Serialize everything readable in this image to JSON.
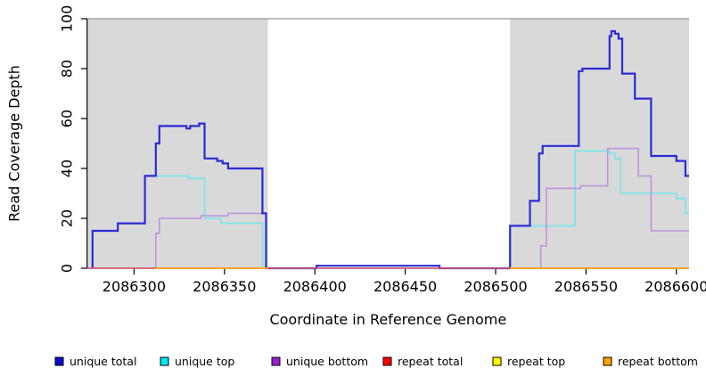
{
  "chart_data": {
    "type": "line",
    "subtype": "step",
    "title": "",
    "xlabel": "Coordinate in Reference Genome",
    "ylabel": "Read Coverage Depth",
    "x_range": [
      2086274,
      2086607
    ],
    "y_range": [
      0,
      100
    ],
    "x_ticks": [
      2086300,
      2086350,
      2086400,
      2086450,
      2086500,
      2086550,
      2086600
    ],
    "y_ticks": [
      0,
      20,
      40,
      60,
      80,
      100
    ],
    "grid": "off",
    "shade_color": "#d9d9d9",
    "shade_top_line_color": "#a6a6a6",
    "shaded_regions": [
      {
        "x1": 2086274,
        "x2": 2086374
      },
      {
        "x1": 2086508,
        "x2": 2086607
      }
    ],
    "legend_position": "bottom",
    "draw_order": [
      "unique top",
      "unique bottom",
      "unique total",
      "repeat total",
      "repeat top",
      "repeat bottom"
    ],
    "series": [
      {
        "name": "unique total",
        "color": "#2b2bd5",
        "legend_color": "#0d0dcf",
        "line_width": 2.2,
        "segments": [
          [
            [
              2086277,
              0
            ],
            [
              2086277,
              15
            ],
            [
              2086291,
              18
            ],
            [
              2086306,
              37
            ],
            [
              2086312,
              50
            ],
            [
              2086314,
              57
            ],
            [
              2086329,
              56
            ],
            [
              2086331,
              57
            ],
            [
              2086336,
              58
            ],
            [
              2086339,
              44
            ],
            [
              2086346,
              43
            ],
            [
              2086349,
              42
            ],
            [
              2086352,
              40
            ],
            [
              2086371,
              22
            ],
            [
              2086373,
              0
            ],
            [
              2086401,
              1
            ],
            [
              2086469,
              1
            ],
            [
              2086469,
              0
            ],
            [
              2086508,
              0
            ],
            [
              2086508,
              17
            ],
            [
              2086519,
              27
            ],
            [
              2086524,
              46
            ],
            [
              2086526,
              49
            ],
            [
              2086546,
              79
            ],
            [
              2086548,
              80
            ],
            [
              2086563,
              93
            ],
            [
              2086564,
              95
            ],
            [
              2086566,
              94
            ],
            [
              2086568,
              92
            ],
            [
              2086570,
              78
            ],
            [
              2086577,
              68
            ],
            [
              2086586,
              45
            ],
            [
              2086600,
              43
            ],
            [
              2086605,
              37
            ],
            [
              2086607,
              37
            ]
          ]
        ]
      },
      {
        "name": "unique top",
        "color": "#72e6ec",
        "legend_color": "#00e9f0",
        "line_width": 1.6,
        "segments": [
          [
            [
              2086277,
              0
            ],
            [
              2086277,
              15
            ],
            [
              2086291,
              18
            ],
            [
              2086306,
              37
            ],
            [
              2086330,
              36
            ],
            [
              2086339,
              20
            ],
            [
              2086348,
              18
            ],
            [
              2086371,
              0
            ],
            [
              2086508,
              0
            ],
            [
              2086508,
              17
            ],
            [
              2086544,
              47
            ],
            [
              2086563,
              46
            ],
            [
              2086566,
              44
            ],
            [
              2086569,
              30
            ],
            [
              2086600,
              28
            ],
            [
              2086605,
              22
            ],
            [
              2086607,
              22
            ]
          ]
        ]
      },
      {
        "name": "unique bottom",
        "color": "#bf93dd",
        "legend_color": "#991fd3",
        "line_width": 1.6,
        "segments": [
          [
            [
              2086312,
              0
            ],
            [
              2086312,
              14
            ],
            [
              2086314,
              20
            ],
            [
              2086337,
              21
            ],
            [
              2086352,
              22
            ],
            [
              2086373,
              22
            ],
            [
              2086373,
              0
            ],
            [
              2086525,
              0
            ],
            [
              2086525,
              9
            ],
            [
              2086528,
              32
            ],
            [
              2086547,
              33
            ],
            [
              2086562,
              48
            ],
            [
              2086579,
              37
            ],
            [
              2086586,
              15
            ],
            [
              2086607,
              15
            ]
          ]
        ]
      },
      {
        "name": "repeat total",
        "color": "#e4566e",
        "legend_color": "#ff0000",
        "line_width": 1.6,
        "segments": [
          [
            [
              2086274,
              0
            ],
            [
              2086607,
              0
            ]
          ]
        ]
      },
      {
        "name": "repeat top",
        "color": "#ffff00",
        "legend_color": "#ffff00",
        "line_width": 1.6,
        "segments": [
          [
            [
              2086312,
              0
            ],
            [
              2086374,
              0
            ]
          ],
          [
            [
              2086508,
              0
            ],
            [
              2086607,
              0
            ]
          ]
        ]
      },
      {
        "name": "repeat bottom",
        "color": "#ff9e1b",
        "legend_color": "#ffa300",
        "line_width": 1.8,
        "segments": [
          [
            [
              2086312,
              0
            ],
            [
              2086374,
              0
            ]
          ],
          [
            [
              2086508,
              0
            ],
            [
              2086607,
              0
            ]
          ]
        ]
      }
    ]
  }
}
